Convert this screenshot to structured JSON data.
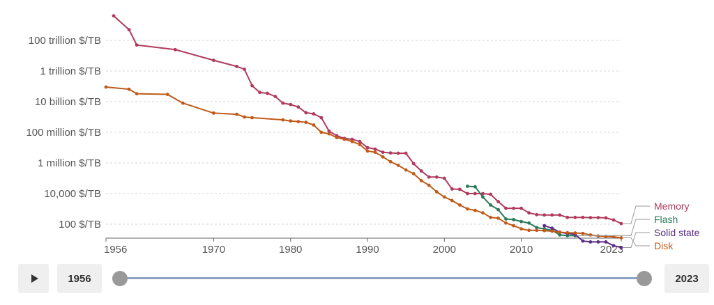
{
  "chart_data": {
    "type": "line",
    "y_scale": "log",
    "y_tick_labels": [
      {
        "value": 100000000000000.0,
        "label": "100 trillion $/TB"
      },
      {
        "value": 1000000000000.0,
        "label": "1 trillion $/TB"
      },
      {
        "value": 10000000000.0,
        "label": "10 billion $/TB"
      },
      {
        "value": 100000000.0,
        "label": "100 million $/TB"
      },
      {
        "value": 1000000.0,
        "label": "1 million $/TB"
      },
      {
        "value": 10000.0,
        "label": "10,000 $/TB"
      },
      {
        "value": 100.0,
        "label": "100 $/TB"
      }
    ],
    "x_tick_labels": [
      {
        "value": 1956,
        "label": "1956"
      },
      {
        "value": 1970,
        "label": "1970"
      },
      {
        "value": 1980,
        "label": "1980"
      },
      {
        "value": 1990,
        "label": "1990"
      },
      {
        "value": 2000,
        "label": "2000"
      },
      {
        "value": 2010,
        "label": "2010"
      },
      {
        "value": 2023,
        "label": "2023"
      }
    ],
    "xlim": [
      1956,
      2023
    ],
    "ylim": [
      3,
      5000000000000000.0
    ],
    "grid": true,
    "legend": "right",
    "series": [
      {
        "name": "Memory",
        "color": "#b03a5b",
        "points": [
          [
            1957,
            4000000000000000.0
          ],
          [
            1959,
            500000000000000.0
          ],
          [
            1960,
            50000000000000.0
          ],
          [
            1965,
            25000000000000.0
          ],
          [
            1970,
            5000000000000.0
          ],
          [
            1973,
            2000000000000.0
          ],
          [
            1974,
            1300000000000.0
          ],
          [
            1975,
            110000000000.0
          ],
          [
            1976,
            40000000000.0
          ],
          [
            1977,
            35000000000.0
          ],
          [
            1978,
            22000000000.0
          ],
          [
            1979,
            8000000000.0
          ],
          [
            1980,
            6500000000.0
          ],
          [
            1981,
            4500000000.0
          ],
          [
            1982,
            1900000000.0
          ],
          [
            1983,
            1600000000.0
          ],
          [
            1984,
            900000000.0
          ],
          [
            1985,
            120000000.0
          ],
          [
            1986,
            60000000.0
          ],
          [
            1987,
            40000000.0
          ],
          [
            1988,
            35000000.0
          ],
          [
            1989,
            25000000.0
          ],
          [
            1990,
            10000000.0
          ],
          [
            1991,
            8000000.0
          ],
          [
            1992,
            5000000.0
          ],
          [
            1993,
            4500000.0
          ],
          [
            1994,
            4300000.0
          ],
          [
            1995,
            4300000.0
          ],
          [
            1996,
            900000.0
          ],
          [
            1997,
            300000.0
          ],
          [
            1998,
            120000.0
          ],
          [
            1999,
            120000.0
          ],
          [
            2000,
            100000.0
          ],
          [
            2001,
            20000.0
          ],
          [
            2002,
            19000.0
          ],
          [
            2003,
            10000.0
          ],
          [
            2004,
            10000.0
          ],
          [
            2005,
            10000.0
          ],
          [
            2006,
            9000.0
          ],
          [
            2007,
            3000.0
          ],
          [
            2008,
            1100.0
          ],
          [
            2009,
            1100.0
          ],
          [
            2010,
            1100.0
          ],
          [
            2011,
            550
          ],
          [
            2012,
            420
          ],
          [
            2013,
            400
          ],
          [
            2014,
            400
          ],
          [
            2015,
            400
          ],
          [
            2016,
            280
          ],
          [
            2017,
            280
          ],
          [
            2018,
            280
          ],
          [
            2019,
            270
          ],
          [
            2020,
            270
          ],
          [
            2021,
            260
          ],
          [
            2022,
            190
          ],
          [
            2023,
            110
          ]
        ]
      },
      {
        "name": "Flash",
        "color": "#2a7a5a",
        "points": [
          [
            2003,
            30000.0
          ],
          [
            2004,
            28000.0
          ],
          [
            2005,
            6000.0
          ],
          [
            2006,
            1800.0
          ],
          [
            2007,
            900
          ],
          [
            2008,
            220
          ],
          [
            2009,
            200
          ],
          [
            2010,
            150
          ],
          [
            2011,
            120
          ],
          [
            2012,
            60
          ],
          [
            2013,
            50
          ],
          [
            2014,
            40
          ],
          [
            2015,
            20
          ],
          [
            2016,
            18
          ],
          [
            2017,
            18
          ]
        ]
      },
      {
        "name": "Solid state",
        "color": "#5b2c83",
        "points": [
          [
            2013,
            80
          ],
          [
            2014,
            55
          ],
          [
            2015,
            30
          ],
          [
            2016,
            25
          ],
          [
            2017,
            22
          ],
          [
            2018,
            8
          ],
          [
            2019,
            7
          ],
          [
            2020,
            7
          ],
          [
            2021,
            7
          ],
          [
            2022,
            4
          ],
          [
            2023,
            3
          ]
        ]
      },
      {
        "name": "Disk",
        "color": "#c05a1a",
        "points": [
          [
            1956,
            90000000000.0
          ],
          [
            1959,
            65000000000.0
          ],
          [
            1960,
            33000000000.0
          ],
          [
            1964,
            30000000000.0
          ],
          [
            1966,
            8000000000.0
          ],
          [
            1970,
            1800000000.0
          ],
          [
            1973,
            1500000000.0
          ],
          [
            1974,
            1000000000.0
          ],
          [
            1975,
            900000000.0
          ],
          [
            1979,
            650000000.0
          ],
          [
            1980,
            550000000.0
          ],
          [
            1981,
            500000000.0
          ],
          [
            1982,
            450000000.0
          ],
          [
            1983,
            300000000.0
          ],
          [
            1984,
            100000000.0
          ],
          [
            1985,
            80000000.0
          ],
          [
            1986,
            45000000.0
          ],
          [
            1987,
            35000000.0
          ],
          [
            1988,
            25000000.0
          ],
          [
            1989,
            16000000.0
          ],
          [
            1990,
            6000000.0
          ],
          [
            1991,
            5000000.0
          ],
          [
            1992,
            2500000.0
          ],
          [
            1993,
            1200000.0
          ],
          [
            1994,
            700000.0
          ],
          [
            1995,
            350000.0
          ],
          [
            1996,
            200000.0
          ],
          [
            1997,
            70000.0
          ],
          [
            1998,
            35000.0
          ],
          [
            1999,
            13000.0
          ],
          [
            2000,
            6000.0
          ],
          [
            2001,
            3500.0
          ],
          [
            2002,
            1800.0
          ],
          [
            2003,
            1000.0
          ],
          [
            2004,
            800
          ],
          [
            2005,
            550
          ],
          [
            2006,
            280
          ],
          [
            2007,
            250
          ],
          [
            2008,
            120
          ],
          [
            2009,
            80
          ],
          [
            2010,
            50
          ],
          [
            2011,
            40
          ],
          [
            2012,
            40
          ],
          [
            2013,
            38
          ],
          [
            2014,
            35
          ],
          [
            2015,
            30
          ],
          [
            2016,
            28
          ],
          [
            2017,
            27
          ],
          [
            2018,
            25
          ],
          [
            2019,
            20
          ],
          [
            2020,
            17
          ],
          [
            2021,
            16
          ],
          [
            2022,
            15
          ],
          [
            2023,
            13
          ]
        ]
      }
    ]
  },
  "controls": {
    "start_year": "1956",
    "end_year": "2023",
    "range_start": 1956,
    "range_end": 2023
  }
}
